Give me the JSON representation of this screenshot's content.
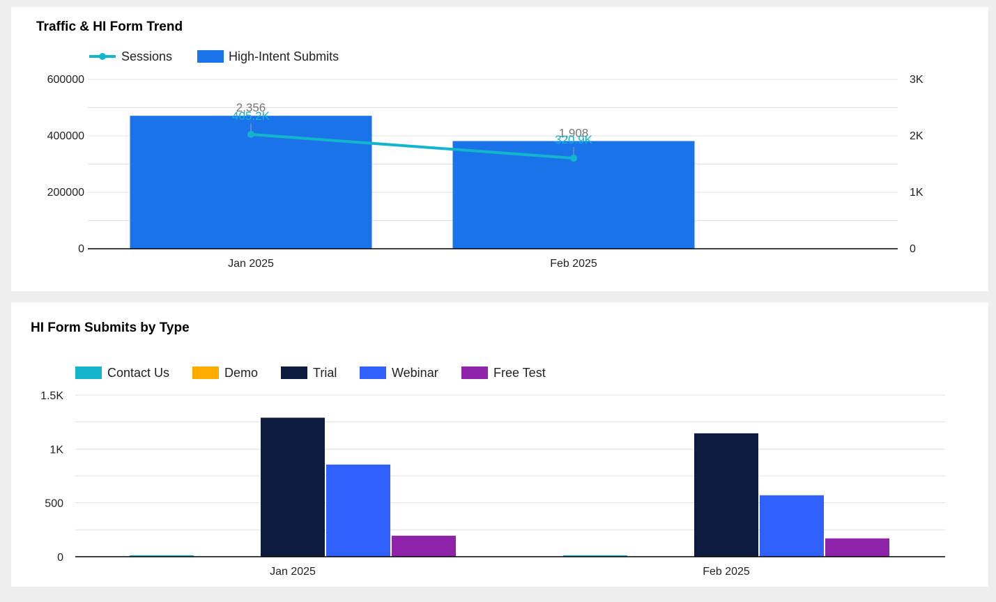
{
  "charts": {
    "traffic": {
      "title": "Traffic & HI Form Trend",
      "legend_position": "top-left",
      "legend": {
        "sessions": "Sessions",
        "submits": "High-Intent Submits"
      },
      "colors": {
        "sessions": "#12b5cb",
        "submits": "#1a73e8"
      }
    },
    "types": {
      "title": "HI Form Submits by Type",
      "legend_position": "top-left",
      "colors": [
        "#12b5cb",
        "#ffab00",
        "#0d1b3e",
        "#3061ff",
        "#8e24aa"
      ]
    }
  },
  "chart_data": [
    {
      "type": "bar",
      "title": "Traffic & HI Form Trend",
      "categories": [
        "Jan 2025",
        "Feb 2025"
      ],
      "grid": true,
      "y_left": {
        "ticks": [
          "600000",
          "400000",
          "200000",
          "0"
        ],
        "ylim": [
          0,
          600000
        ]
      },
      "y_right": {
        "ticks": [
          "3K",
          "2K",
          "1K",
          "0"
        ],
        "ylim": [
          0,
          3000
        ]
      },
      "series": [
        {
          "name": "Sessions",
          "type": "line",
          "axis": "left",
          "values": [
            405200,
            320900
          ],
          "labels": [
            "405.2K",
            "320.9K"
          ]
        },
        {
          "name": "High-Intent Submits",
          "type": "bar",
          "axis": "right",
          "values": [
            2356,
            1908
          ],
          "labels": [
            "2,356",
            "1,908"
          ]
        }
      ]
    },
    {
      "type": "bar",
      "title": "HI Form Submits by Type",
      "categories": [
        "Jan 2025",
        "Feb 2025"
      ],
      "grid": true,
      "y_ticks": [
        "1.5K",
        "1K",
        "500",
        "0"
      ],
      "ylim": [
        0,
        1500
      ],
      "series": [
        {
          "name": "Contact Us",
          "values": [
            12,
            10
          ]
        },
        {
          "name": "Demo",
          "values": [
            0,
            0
          ]
        },
        {
          "name": "Trial",
          "values": [
            1290,
            1145
          ]
        },
        {
          "name": "Webinar",
          "values": [
            855,
            570
          ]
        },
        {
          "name": "Free Test",
          "values": [
            195,
            170
          ]
        }
      ]
    }
  ]
}
